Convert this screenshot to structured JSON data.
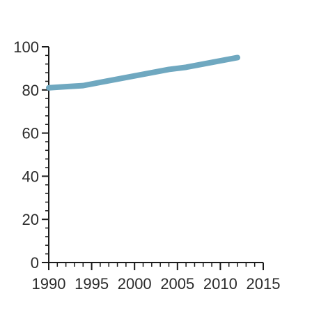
{
  "chart_data": {
    "type": "line",
    "title": "",
    "xlabel": "",
    "ylabel": "",
    "xlim": [
      1990,
      2015
    ],
    "ylim": [
      0,
      100
    ],
    "x_ticks": [
      1990,
      1995,
      2000,
      2005,
      2010,
      2015
    ],
    "x_tick_labels": [
      "1990",
      "1995",
      "2000",
      "2005",
      "2010",
      "2015"
    ],
    "y_ticks": [
      0,
      20,
      40,
      60,
      80,
      100
    ],
    "y_tick_labels": [
      "0",
      "20",
      "40",
      "60",
      "80",
      "100"
    ],
    "x_minor_step": 1,
    "y_minor_step": 4,
    "grid": false,
    "legend": "none",
    "series": [
      {
        "color": "#6fa8c0",
        "x": [
          1990,
          1992,
          1994,
          1996,
          1998,
          2000,
          2002,
          2004,
          2006,
          2008,
          2010,
          2012
        ],
        "values": [
          81,
          81.5,
          82,
          83.5,
          85,
          86.5,
          88,
          89.5,
          90.5,
          92,
          93.5,
          95
        ]
      }
    ]
  }
}
